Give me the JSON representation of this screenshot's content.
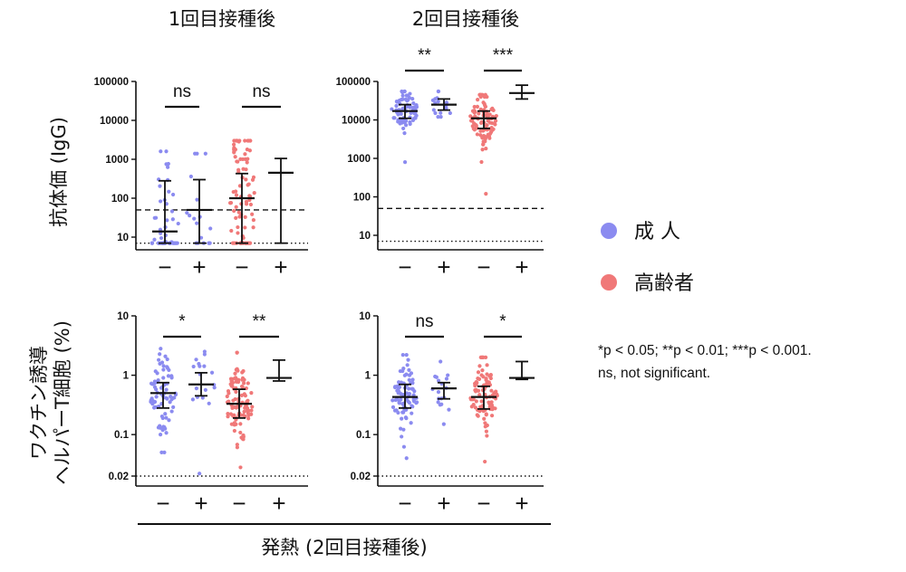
{
  "figure": {
    "column_titles": [
      "1回目接種後",
      "2回目接種後"
    ],
    "row_labels": [
      "抗体価 (IgG)",
      "ワクチン誘導\nヘルパーT細胞 (%)"
    ],
    "x_caption": "発熱 (2回目接種後)",
    "legend": [
      {
        "label": "成 人",
        "color": "#8b8bf0"
      },
      {
        "label": "高齢者",
        "color": "#f07878"
      }
    ],
    "footnote": [
      "*p < 0.05; **p < 0.01; ***p < 0.001.",
      "ns, not significant."
    ],
    "colors": {
      "adult": "#8b8bf0",
      "elderly": "#f07878",
      "ink": "#111111"
    }
  },
  "chart_data": [
    {
      "type": "scatter",
      "title": "1回目接種後",
      "ylabel": "抗体価 (IgG)",
      "yscale": "log",
      "ylim": [
        5,
        100000
      ],
      "yticks": [
        "100000",
        "10000",
        "1000",
        "100",
        "10"
      ],
      "ytick_values": [
        100000,
        10000,
        1000,
        100,
        10
      ],
      "categories": [
        "−",
        "+",
        "−",
        "+"
      ],
      "groups": [
        "成人",
        "成人",
        "高齢者",
        "高齢者"
      ],
      "median": [
        14,
        50,
        100,
        450
      ],
      "q1": [
        7,
        7,
        7,
        7
      ],
      "q3": [
        280,
        300,
        430,
        1050
      ],
      "point_range": [
        [
          7,
          1600
        ],
        [
          7,
          1400
        ],
        [
          7,
          3000
        ],
        [
          7,
          7
        ]
      ],
      "point_counts": [
        55,
        18,
        85,
        0
      ],
      "cutoff_dashed": 50,
      "detection_dotted": 7,
      "comparisons": [
        {
          "between": [
            1,
            2
          ],
          "label": "ns",
          "y": 28000
        },
        {
          "between": [
            3,
            4
          ],
          "label": "ns",
          "y": 28000
        }
      ]
    },
    {
      "type": "scatter",
      "title": "2回目接種後",
      "ylabel": "抗体価 (IgG)",
      "yscale": "log",
      "ylim": [
        5,
        100000
      ],
      "yticks": [
        "100000",
        "10000",
        "1000",
        "100",
        "10"
      ],
      "ytick_values": [
        100000,
        10000,
        1000,
        100,
        10
      ],
      "categories": [
        "−",
        "+",
        "−",
        "+"
      ],
      "groups": [
        "成人",
        "成人",
        "高齢者",
        "高齢者"
      ],
      "median": [
        17000,
        25000,
        11000,
        50000
      ],
      "q1": [
        11000,
        18000,
        6000,
        35000
      ],
      "q3": [
        25000,
        35000,
        17000,
        80000
      ],
      "point_range": [
        [
          800,
          55000
        ],
        [
          12000,
          55000
        ],
        [
          120,
          45000
        ],
        [
          35000,
          80000
        ]
      ],
      "point_counts": [
        80,
        18,
        95,
        0
      ],
      "cutoff_dashed": 50,
      "detection_dotted": 7,
      "comparisons": [
        {
          "between": [
            1,
            2
          ],
          "label": "**",
          "y": 190000
        },
        {
          "between": [
            3,
            4
          ],
          "label": "***",
          "y": 190000
        }
      ]
    },
    {
      "type": "scatter",
      "title": "",
      "ylabel": "ワクチン誘導ヘルパーT細胞 (%)",
      "yscale": "log",
      "ylim": [
        0.015,
        10
      ],
      "yticks": [
        "10",
        "1",
        "0.1",
        "0.02"
      ],
      "ytick_values": [
        10,
        1,
        0.1,
        0.02
      ],
      "categories": [
        "−",
        "+",
        "−",
        "+"
      ],
      "groups": [
        "成人",
        "成人",
        "高齢者",
        "高齢者"
      ],
      "median": [
        0.5,
        0.7,
        0.33,
        0.9
      ],
      "q1": [
        0.28,
        0.45,
        0.19,
        0.8
      ],
      "q3": [
        0.75,
        1.1,
        0.58,
        1.8
      ],
      "point_range": [
        [
          0.05,
          2.8
        ],
        [
          0.022,
          2.5
        ],
        [
          0.028,
          2.4
        ],
        [
          0.8,
          1.8
        ]
      ],
      "point_counts": [
        80,
        18,
        95,
        0
      ],
      "cutoff_dotted": 0.02,
      "comparisons": [
        {
          "between": [
            1,
            2
          ],
          "label": "*",
          "y": 4.5
        },
        {
          "between": [
            3,
            4
          ],
          "label": "**",
          "y": 4.5
        }
      ]
    },
    {
      "type": "scatter",
      "title": "",
      "ylabel": "ワクチン誘導ヘルパーT細胞 (%)",
      "yscale": "log",
      "ylim": [
        0.015,
        10
      ],
      "yticks": [
        "10",
        "1",
        "0.1",
        "0.02"
      ],
      "ytick_values": [
        10,
        1,
        0.1,
        0.02
      ],
      "categories": [
        "−",
        "+",
        "−",
        "+"
      ],
      "groups": [
        "成人",
        "成人",
        "高齢者",
        "高齢者"
      ],
      "median": [
        0.43,
        0.6,
        0.43,
        0.9
      ],
      "q1": [
        0.28,
        0.4,
        0.27,
        0.85
      ],
      "q3": [
        0.7,
        0.75,
        0.65,
        1.7
      ],
      "point_range": [
        [
          0.04,
          2.2
        ],
        [
          0.15,
          1.7
        ],
        [
          0.035,
          2.0
        ],
        [
          0.85,
          1.7
        ]
      ],
      "point_counts": [
        80,
        18,
        95,
        0
      ],
      "cutoff_dotted": 0.02,
      "comparisons": [
        {
          "between": [
            1,
            2
          ],
          "label": "ns",
          "y": 4.5
        },
        {
          "between": [
            3,
            4
          ],
          "label": "*",
          "y": 4.5
        }
      ]
    }
  ]
}
